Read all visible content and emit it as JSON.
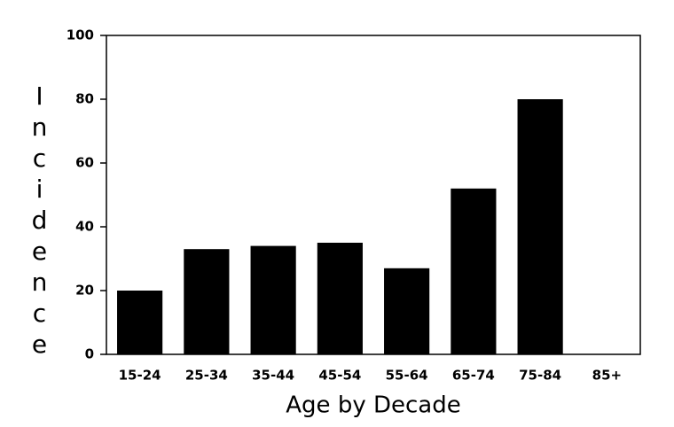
{
  "chart_data": {
    "type": "bar",
    "x_label": "Age by Decade",
    "y_label": "Incidence",
    "categories": [
      "15-24",
      "25-34",
      "35-44",
      "45-54",
      "55-64",
      "65-74",
      "75-84",
      "85+"
    ],
    "values": [
      20,
      33,
      34,
      35,
      27,
      52,
      80,
      0
    ],
    "color": "#000000",
    "ylim": [
      0,
      100
    ],
    "yticks": [
      0,
      20,
      40,
      60,
      80,
      100
    ],
    "grid": false
  }
}
